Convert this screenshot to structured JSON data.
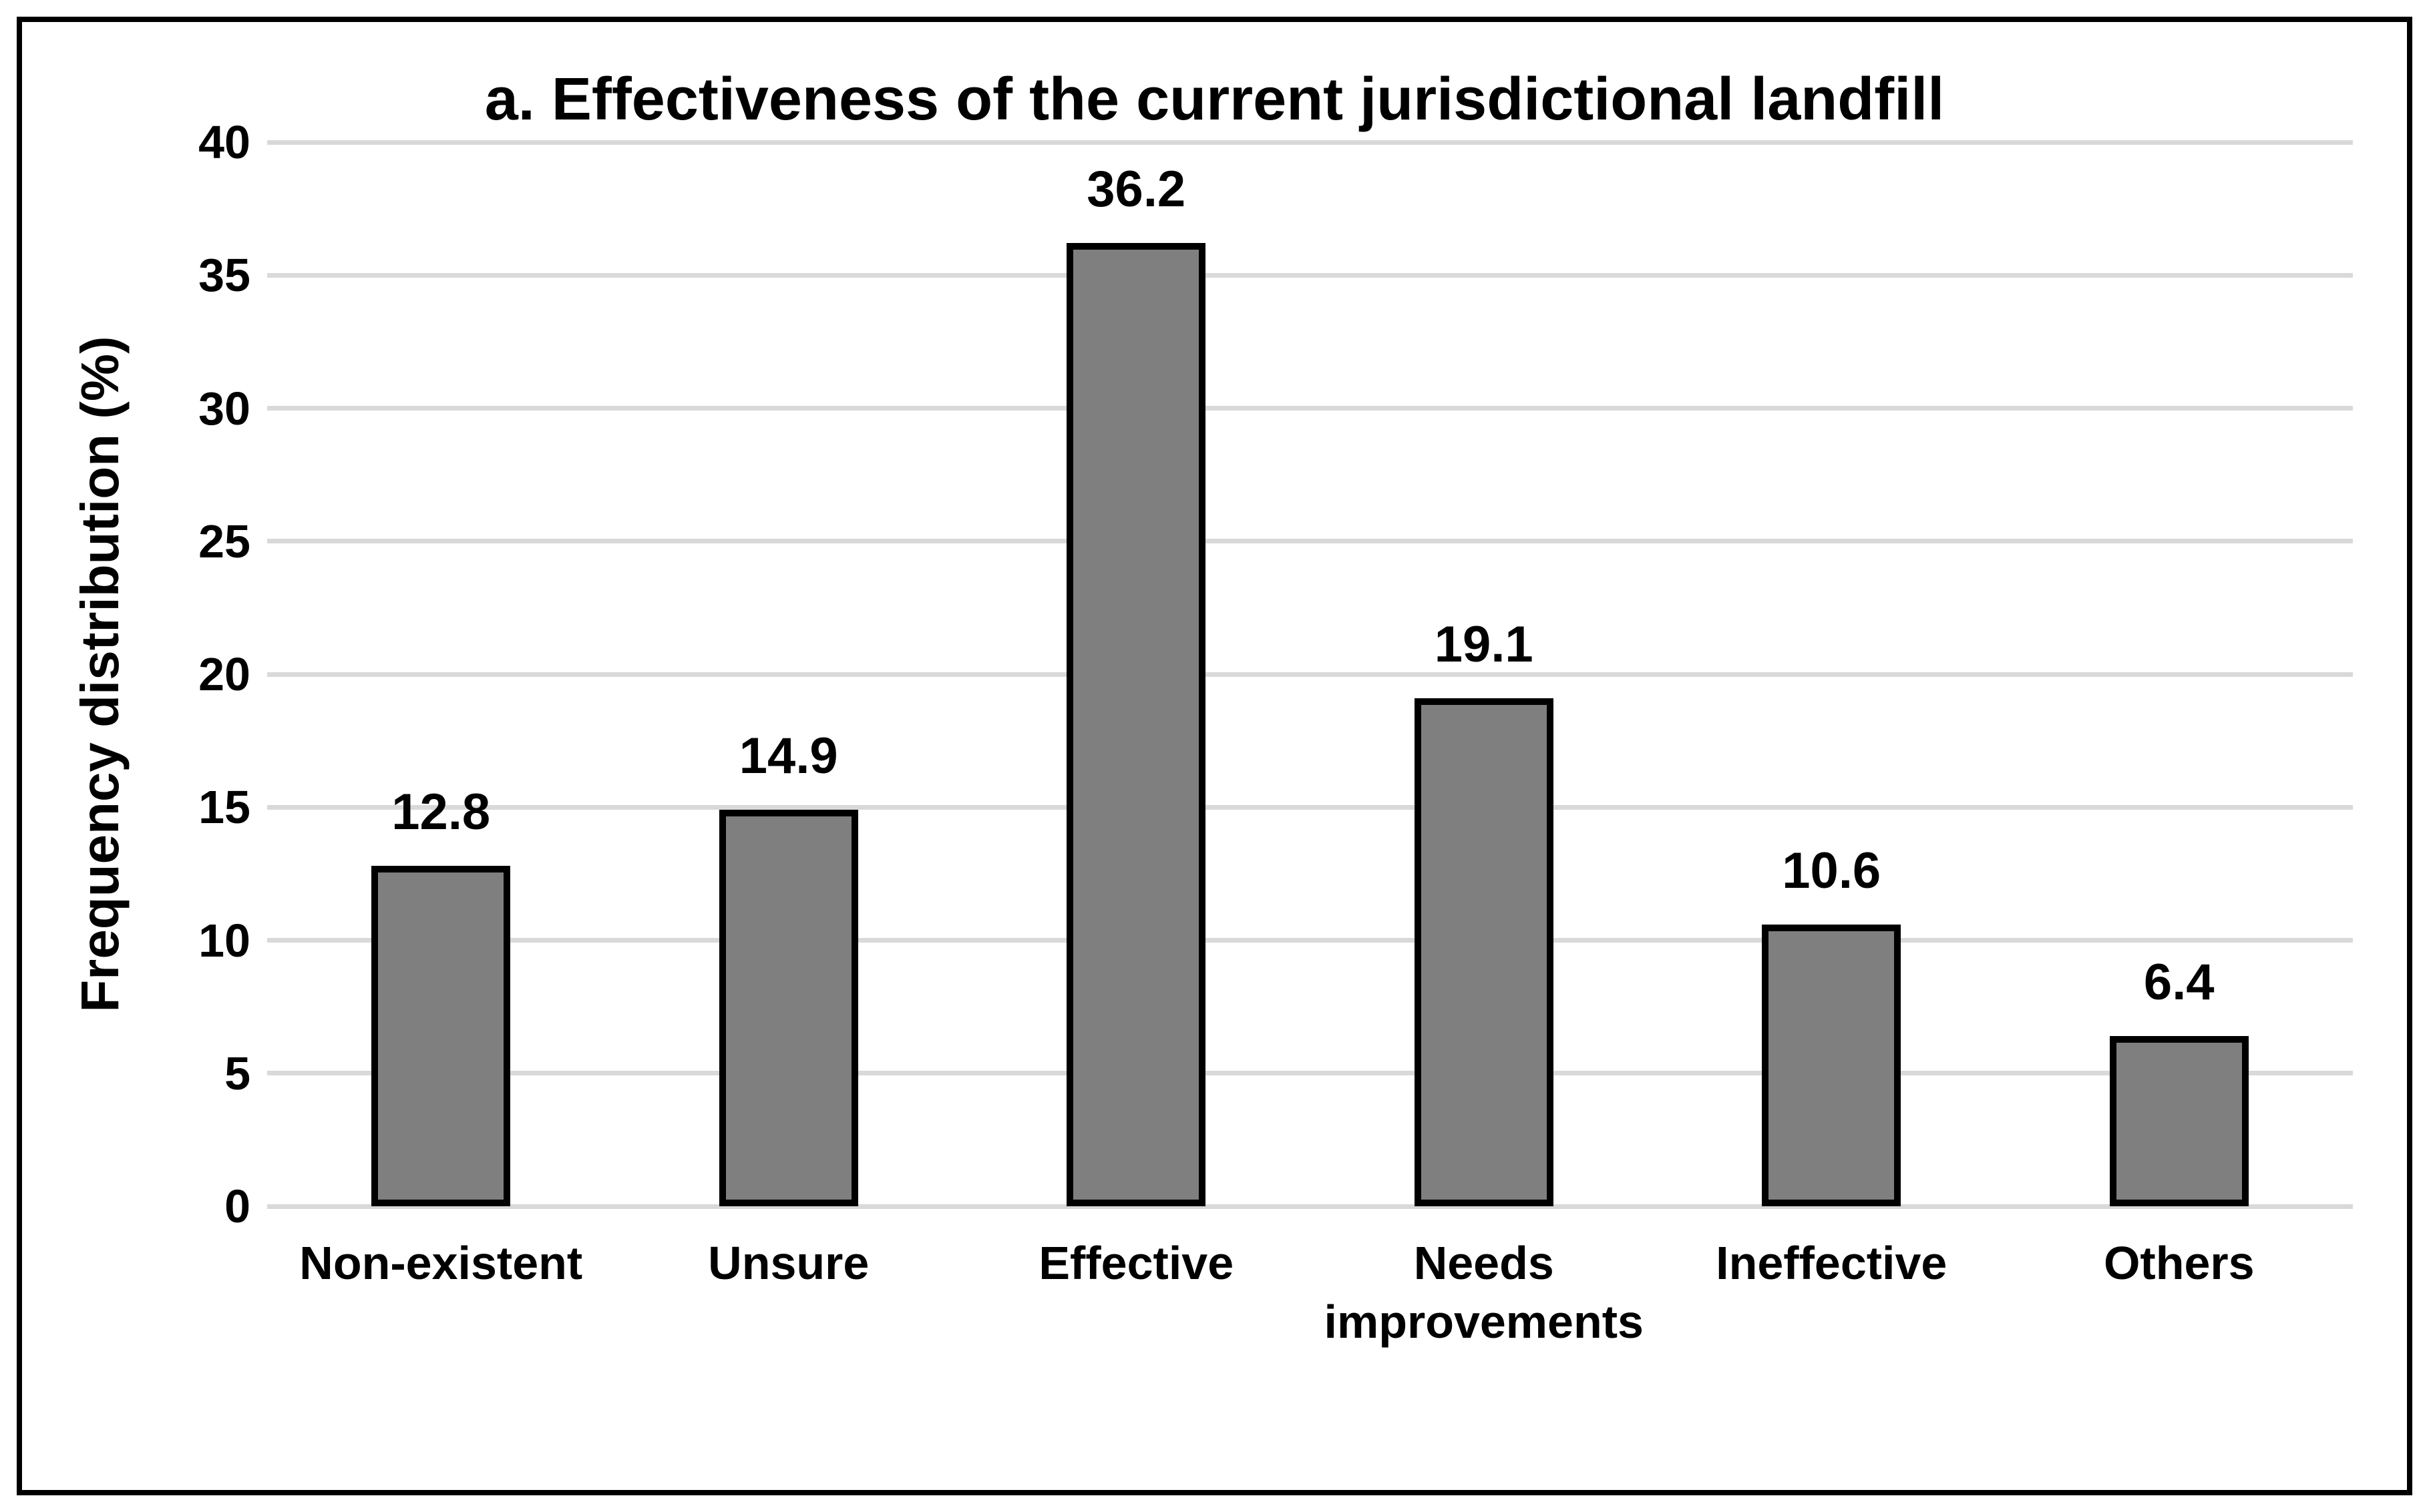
{
  "chart_data": {
    "type": "bar",
    "title": "a. Effectiveness of the current jurisdictional landfill",
    "xlabel": "",
    "ylabel": "Frequency distribution (%)",
    "categories": [
      "Non-existent",
      "Unsure",
      "Effective",
      "Needs improvements",
      "Ineffective",
      "Others"
    ],
    "values": [
      12.8,
      14.9,
      36.2,
      19.1,
      10.6,
      6.4
    ],
    "value_labels": [
      "12.8",
      "14.9",
      "36.2",
      "19.1",
      "10.6",
      "6.4"
    ],
    "ylim": [
      0,
      40
    ],
    "yticks": [
      0,
      5,
      10,
      15,
      20,
      25,
      30,
      35,
      40
    ],
    "grid": "horizontal",
    "legend": "none",
    "colors": {
      "bar_fill": "#7F7F7F",
      "bar_border": "#000000",
      "gridline": "#D9D9D9",
      "text": "#000000",
      "frame_border": "#000000",
      "background": "#FFFFFF"
    }
  }
}
